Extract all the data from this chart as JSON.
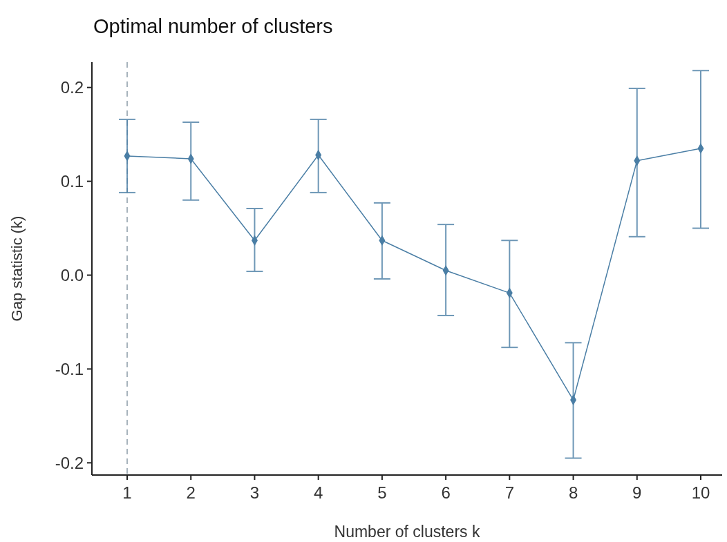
{
  "chart_data": {
    "type": "line",
    "title": "Optimal number of clusters",
    "xlabel": "Number of clusters k",
    "ylabel": "Gap statistic (k)",
    "categories": [
      "1",
      "2",
      "3",
      "4",
      "5",
      "6",
      "7",
      "8",
      "9",
      "10"
    ],
    "series": [
      {
        "color": "#4a7ea5",
        "values": [
          0.127,
          0.124,
          0.037,
          0.128,
          0.037,
          0.005,
          -0.019,
          -0.133,
          0.122,
          0.135
        ],
        "errors": [
          [
            0.088,
            0.166
          ],
          [
            0.08,
            0.163
          ],
          [
            0.004,
            0.071
          ],
          [
            0.088,
            0.166
          ],
          [
            -0.004,
            0.077
          ],
          [
            -0.043,
            0.054
          ],
          [
            -0.077,
            0.037
          ],
          [
            -0.195,
            -0.072
          ],
          [
            0.041,
            0.199
          ],
          [
            0.05,
            0.218
          ]
        ]
      }
    ],
    "ylim": [
      -0.213,
      0.227
    ],
    "yticks": [
      -0.2,
      -0.1,
      {
        "value": 0,
        "label": "0.0"
      },
      0.1,
      0.2
    ],
    "marker": "diamond",
    "grid": false,
    "ref_lines": [
      {
        "axis": "x",
        "value": "1",
        "color": "#8a9aa6",
        "line_style": "dashed"
      }
    ]
  }
}
